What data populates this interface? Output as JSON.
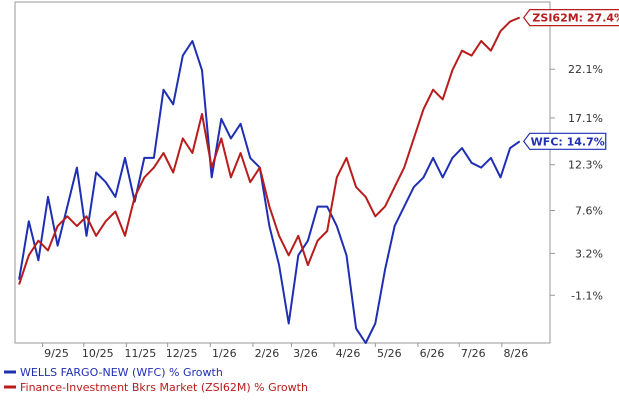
{
  "chart_data": {
    "type": "line",
    "title": "",
    "xlabel": "",
    "ylabel": "",
    "ylim": [
      -6,
      29
    ],
    "x_ticks": [
      "9/25",
      "10/25",
      "11/25",
      "12/25",
      "1/26",
      "2/26",
      "3/26",
      "4/26",
      "5/26",
      "6/26",
      "7/26",
      "8/26"
    ],
    "y_ticks": [
      {
        "value": 22.1,
        "label": "22.1%"
      },
      {
        "value": 17.1,
        "label": "17.1%"
      },
      {
        "value": 12.3,
        "label": "12.3%"
      },
      {
        "value": 7.6,
        "label": "7.6%"
      },
      {
        "value": 3.2,
        "label": "3.2%"
      },
      {
        "value": -1.1,
        "label": "-1.1%"
      }
    ],
    "grid": false,
    "legend_position": "bottom-left",
    "series": [
      {
        "name": "WELLS FARGO-NEW (WFC) % Growth",
        "color": "#1f2fb3",
        "end_label": "WFC: 14.7%",
        "x": [
          "2025-08-15",
          "2025-08-22",
          "2025-08-29",
          "2025-09-05",
          "2025-09-12",
          "2025-09-19",
          "2025-09-26",
          "2025-10-03",
          "2025-10-10",
          "2025-10-17",
          "2025-10-24",
          "2025-10-31",
          "2025-11-07",
          "2025-11-14",
          "2025-11-21",
          "2025-11-28",
          "2025-12-05",
          "2025-12-12",
          "2025-12-19",
          "2025-12-26",
          "2026-01-02",
          "2026-01-09",
          "2026-01-16",
          "2026-01-23",
          "2026-01-30",
          "2026-02-06",
          "2026-02-13",
          "2026-02-20",
          "2026-02-27",
          "2026-03-06",
          "2026-03-13",
          "2026-03-20",
          "2026-03-27",
          "2026-04-03",
          "2026-04-10",
          "2026-04-17",
          "2026-04-24",
          "2026-05-01",
          "2026-05-08",
          "2026-05-15",
          "2026-05-22",
          "2026-05-29",
          "2026-06-05",
          "2026-06-12",
          "2026-06-19",
          "2026-06-26",
          "2026-07-03",
          "2026-07-10",
          "2026-07-17",
          "2026-07-24",
          "2026-07-31",
          "2026-08-07",
          "2026-08-14"
        ],
        "values": [
          0.5,
          6.5,
          2.5,
          9.0,
          4.0,
          8.0,
          12.0,
          5.0,
          11.5,
          10.5,
          9.0,
          13.0,
          8.5,
          13.0,
          13.0,
          20.0,
          18.5,
          23.5,
          25.0,
          22.0,
          11.0,
          17.0,
          15.0,
          16.5,
          13.0,
          12.0,
          6.0,
          2.0,
          -4.0,
          3.0,
          4.5,
          8.0,
          8.0,
          6.0,
          3.0,
          -4.5,
          -6.0,
          -4.0,
          1.5,
          6.0,
          8.0,
          10.0,
          11.0,
          13.0,
          11.0,
          13.0,
          14.0,
          12.5,
          12.0,
          13.0,
          11.0,
          14.0,
          14.7
        ]
      },
      {
        "name": "Finance-Investment Bkrs Market (ZSI62M) % Growth",
        "color": "#b81c1c",
        "end_label": "ZSI62M: 27.4%",
        "x": [
          "2025-08-15",
          "2025-08-22",
          "2025-08-29",
          "2025-09-05",
          "2025-09-12",
          "2025-09-19",
          "2025-09-26",
          "2025-10-03",
          "2025-10-10",
          "2025-10-17",
          "2025-10-24",
          "2025-10-31",
          "2025-11-07",
          "2025-11-14",
          "2025-11-21",
          "2025-11-28",
          "2025-12-05",
          "2025-12-12",
          "2025-12-19",
          "2025-12-26",
          "2026-01-02",
          "2026-01-09",
          "2026-01-16",
          "2026-01-23",
          "2026-01-30",
          "2026-02-06",
          "2026-02-13",
          "2026-02-20",
          "2026-02-27",
          "2026-03-06",
          "2026-03-13",
          "2026-03-20",
          "2026-03-27",
          "2026-04-03",
          "2026-04-10",
          "2026-04-17",
          "2026-04-24",
          "2026-05-01",
          "2026-05-08",
          "2026-05-15",
          "2026-05-22",
          "2026-05-29",
          "2026-06-05",
          "2026-06-12",
          "2026-06-19",
          "2026-06-26",
          "2026-07-03",
          "2026-07-10",
          "2026-07-17",
          "2026-07-24",
          "2026-07-31",
          "2026-08-07",
          "2026-08-14"
        ],
        "values": [
          0.0,
          3.0,
          4.5,
          3.5,
          6.0,
          7.0,
          6.0,
          7.0,
          5.0,
          6.5,
          7.5,
          5.0,
          9.0,
          11.0,
          12.0,
          13.5,
          11.5,
          15.0,
          13.5,
          17.5,
          12.0,
          15.0,
          11.0,
          13.5,
          10.5,
          12.0,
          8.0,
          5.0,
          3.0,
          5.0,
          2.0,
          4.5,
          5.5,
          11.0,
          13.0,
          10.0,
          9.0,
          7.0,
          8.0,
          10.0,
          12.0,
          15.0,
          18.0,
          20.0,
          19.0,
          22.0,
          24.0,
          23.5,
          25.0,
          24.0,
          26.0,
          27.0,
          27.4
        ]
      }
    ]
  }
}
